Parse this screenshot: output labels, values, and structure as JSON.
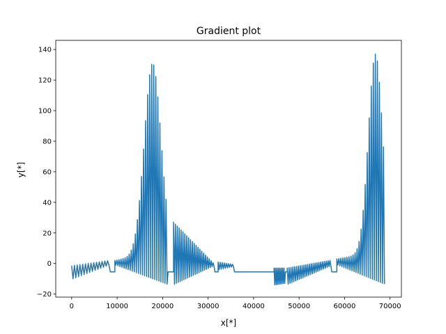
{
  "chart_data": {
    "type": "line",
    "title": "Gradient plot",
    "xlabel": "x[*]",
    "ylabel": "y[*]",
    "xlim": [
      -3500,
      72500
    ],
    "ylim": [
      -22,
      146
    ],
    "xticks": [
      0,
      10000,
      20000,
      30000,
      40000,
      50000,
      60000,
      70000
    ],
    "yticks": [
      -20,
      0,
      20,
      40,
      60,
      80,
      100,
      120,
      140
    ],
    "grid": false,
    "legend": "none",
    "series": [
      {
        "color": "#1f77b4",
        "segments": [
          {
            "type": "osc",
            "start": 0,
            "end": 8500,
            "count": 14,
            "peak_start": -1.5,
            "peak_end": 1.8,
            "trough_start": -10,
            "trough_end": -1,
            "peak_center": null
          },
          {
            "type": "flat",
            "start": 8500,
            "end": 9500,
            "y": -5.5
          },
          {
            "type": "osc",
            "start": 9500,
            "end": 21200,
            "count": 26,
            "peak_start": 2,
            "peak_end": 8,
            "trough_start": -1,
            "trough_end": -13.5,
            "peak_center": 17800,
            "peak_max": 131,
            "peak_width": 2600
          },
          {
            "type": "flat",
            "start": 21200,
            "end": 22400,
            "y": -5.5
          },
          {
            "type": "osc",
            "start": 22400,
            "end": 31500,
            "count": 22,
            "peak_start": 27,
            "peak_end": 0.5,
            "trough_start": -13.5,
            "trough_end": -1.5,
            "peak_center": null
          },
          {
            "type": "flat",
            "start": 31500,
            "end": 32200,
            "y": -5.5
          },
          {
            "type": "osc",
            "start": 32200,
            "end": 35800,
            "count": 8,
            "peak_start": 1,
            "peak_end": -0.5,
            "trough_start": -4,
            "trough_end": -2,
            "peak_center": null
          },
          {
            "type": "flat",
            "start": 35800,
            "end": 44500,
            "y": -5.5
          },
          {
            "type": "osc",
            "start": 44500,
            "end": 47000,
            "count": 8,
            "peak_start": -3,
            "peak_end": -3,
            "trough_start": -14,
            "trough_end": -13,
            "peak_center": null
          },
          {
            "type": "flat",
            "start": 47000,
            "end": 47400,
            "y": -5.5
          },
          {
            "type": "osc",
            "start": 47400,
            "end": 57200,
            "count": 24,
            "peak_start": -3,
            "peak_end": 2,
            "trough_start": -13.5,
            "trough_end": -1.5,
            "peak_center": null
          },
          {
            "type": "flat",
            "start": 57200,
            "end": 58300,
            "y": -5.5
          },
          {
            "type": "osc",
            "start": 58300,
            "end": 69000,
            "count": 24,
            "peak_start": 3,
            "peak_end": 8,
            "trough_start": -1,
            "trough_end": -13.5,
            "peak_center": 66800,
            "peak_max": 137,
            "peak_width": 2200
          }
        ]
      }
    ]
  }
}
